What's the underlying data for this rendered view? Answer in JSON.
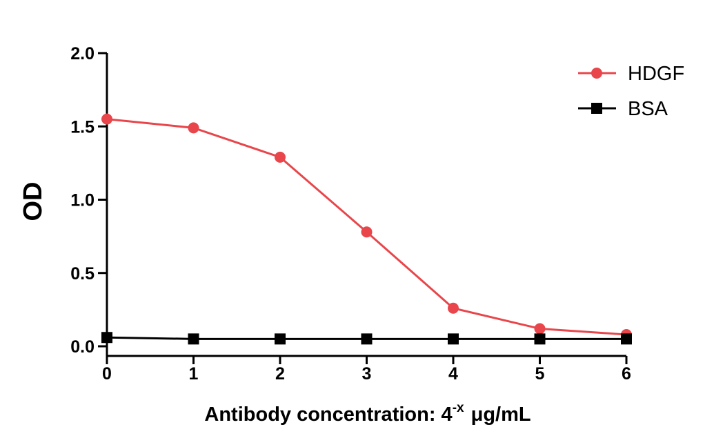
{
  "chart_data": {
    "type": "line",
    "title": "",
    "xlabel": "Antibody concentration: 4",
    "xlabel_superscript": "-x",
    "xlabel_unit": "μg/mL",
    "ylabel": "OD",
    "xlim": [
      0,
      6
    ],
    "ylim": [
      0,
      2.0
    ],
    "x": [
      0,
      1,
      2,
      3,
      4,
      5,
      6
    ],
    "x_tick_labels": [
      "0",
      "1",
      "2",
      "3",
      "4",
      "5",
      "6"
    ],
    "y_ticks": [
      0,
      0.5,
      1.0,
      1.5,
      2.0
    ],
    "y_tick_labels": [
      "0.0",
      "0.5",
      "1.0",
      "1.5",
      "2.0"
    ],
    "grid": false,
    "legend_position": "top-right",
    "series": [
      {
        "name": "HDGF",
        "color": "#e8464b",
        "marker": "circle",
        "values": [
          1.55,
          1.49,
          1.29,
          0.78,
          0.26,
          0.12,
          0.08
        ]
      },
      {
        "name": "BSA",
        "color": "#000000",
        "marker": "square",
        "values": [
          0.06,
          0.05,
          0.05,
          0.05,
          0.05,
          0.05,
          0.05
        ]
      }
    ]
  }
}
